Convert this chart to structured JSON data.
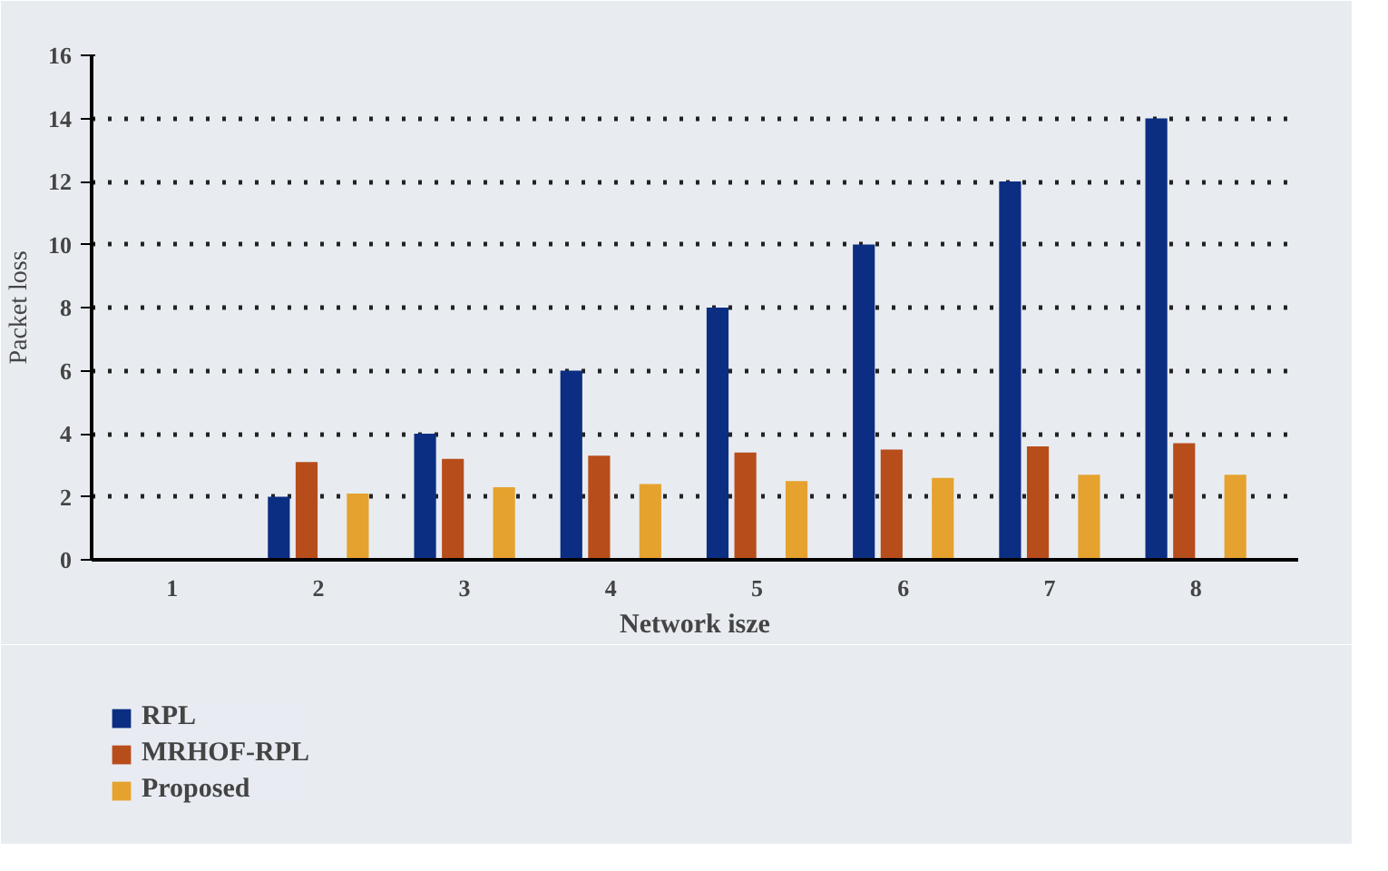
{
  "chart_data": {
    "type": "bar",
    "xlabel": "Network isze",
    "ylabel": "Packet loss",
    "categories": [
      "1",
      "2",
      "3",
      "4",
      "5",
      "6",
      "7",
      "8"
    ],
    "series": [
      {
        "name": "RPL",
        "color": "#0c2e82",
        "values": [
          null,
          2,
          4,
          6,
          8,
          10,
          12,
          14
        ]
      },
      {
        "name": "MRHOF-RPL",
        "color": "#b84d1c",
        "values": [
          null,
          3.1,
          3.2,
          3.3,
          3.4,
          3.5,
          3.6,
          3.7
        ]
      },
      {
        "name": "Proposed",
        "color": "#e5a22e",
        "values": [
          null,
          2.1,
          2.3,
          2.4,
          2.5,
          2.6,
          2.7,
          2.7
        ]
      }
    ],
    "ylim": [
      0,
      16
    ],
    "yticks": [
      0,
      2,
      4,
      6,
      8,
      10,
      12,
      14,
      16
    ],
    "grid": "y",
    "legend": "bottom left"
  }
}
